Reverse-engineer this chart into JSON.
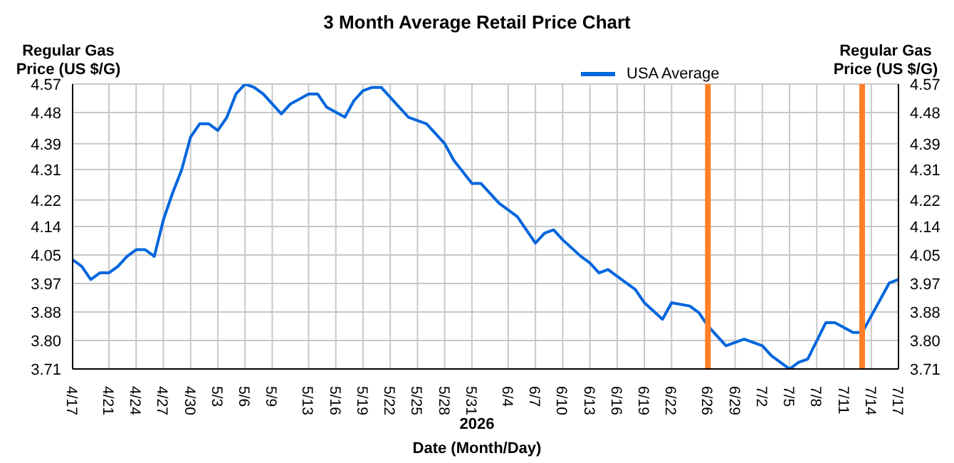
{
  "chart_data": {
    "type": "line",
    "title": "3 Month Average Retail Price Chart",
    "xlabel": "Date (Month/Day)",
    "subtitle": "2026",
    "ylabel": "Regular Gas Price (US $/G)",
    "y2label": "Regular Gas Price (US $/G)",
    "x": [
      "2026-04-17",
      "2026-04-18",
      "2026-04-19",
      "2026-04-20",
      "2026-04-21",
      "2026-04-22",
      "2026-04-23",
      "2026-04-24",
      "2026-04-25",
      "2026-04-26",
      "2026-04-27",
      "2026-04-28",
      "2026-04-29",
      "2026-04-30",
      "2026-05-01",
      "2026-05-02",
      "2026-05-03",
      "2026-05-04",
      "2026-05-05",
      "2026-05-06",
      "2026-05-07",
      "2026-05-08",
      "2026-05-10",
      "2026-05-11",
      "2026-05-13",
      "2026-05-14",
      "2026-05-15",
      "2026-05-17",
      "2026-05-18",
      "2026-05-19",
      "2026-05-20",
      "2026-05-21",
      "2026-05-23",
      "2026-05-24",
      "2026-05-26",
      "2026-05-28",
      "2026-05-29",
      "2026-05-31",
      "2026-06-01",
      "2026-06-03",
      "2026-06-05",
      "2026-06-07",
      "2026-06-08",
      "2026-06-09",
      "2026-06-10",
      "2026-06-12",
      "2026-06-13",
      "2026-06-14",
      "2026-06-15",
      "2026-06-16",
      "2026-06-18",
      "2026-06-19",
      "2026-06-21",
      "2026-06-22",
      "2026-06-24",
      "2026-06-25",
      "2026-06-26",
      "2026-06-28",
      "2026-06-30",
      "2026-07-02",
      "2026-07-03",
      "2026-07-05",
      "2026-07-06",
      "2026-07-07",
      "2026-07-09",
      "2026-07-10",
      "2026-07-12",
      "2026-07-13",
      "2026-07-16",
      "2026-07-17"
    ],
    "series": [
      {
        "name": "USA Average",
        "color": "#0066dd",
        "values": [
          4.04,
          4.02,
          3.98,
          4.0,
          4.0,
          4.02,
          4.05,
          4.07,
          4.07,
          4.05,
          4.16,
          4.24,
          4.31,
          4.41,
          4.45,
          4.45,
          4.43,
          4.47,
          4.54,
          4.57,
          4.56,
          4.54,
          4.48,
          4.51,
          4.54,
          4.54,
          4.5,
          4.47,
          4.52,
          4.55,
          4.56,
          4.56,
          4.5,
          4.47,
          4.45,
          4.39,
          4.34,
          4.27,
          4.27,
          4.21,
          4.17,
          4.09,
          4.12,
          4.13,
          4.1,
          4.05,
          4.03,
          4.0,
          4.01,
          3.99,
          3.95,
          3.91,
          3.86,
          3.91,
          3.9,
          3.88,
          3.84,
          3.78,
          3.8,
          3.78,
          3.75,
          3.71,
          3.73,
          3.74,
          3.85,
          3.85,
          3.82,
          3.82,
          3.97,
          3.98
        ]
      }
    ],
    "xlim": [
      "2026-04-17",
      "2026-07-17"
    ],
    "xticks": [
      {
        "value": "2026-04-17",
        "label": "4/17"
      },
      {
        "value": "2026-04-21",
        "label": "4/21"
      },
      {
        "value": "2026-04-24",
        "label": "4/24"
      },
      {
        "value": "2026-04-27",
        "label": "4/27"
      },
      {
        "value": "2026-04-30",
        "label": "4/30"
      },
      {
        "value": "2026-05-03",
        "label": "5/3"
      },
      {
        "value": "2026-05-06",
        "label": "5/6"
      },
      {
        "value": "2026-05-09",
        "label": "5/9"
      },
      {
        "value": "2026-05-13",
        "label": "5/13"
      },
      {
        "value": "2026-05-16",
        "label": "5/16"
      },
      {
        "value": "2026-05-19",
        "label": "5/19"
      },
      {
        "value": "2026-05-22",
        "label": "5/22"
      },
      {
        "value": "2026-05-25",
        "label": "5/25"
      },
      {
        "value": "2026-05-28",
        "label": "5/28"
      },
      {
        "value": "2026-05-31",
        "label": "5/31"
      },
      {
        "value": "2026-06-04",
        "label": "6/4"
      },
      {
        "value": "2026-06-07",
        "label": "6/7"
      },
      {
        "value": "2026-06-10",
        "label": "6/10"
      },
      {
        "value": "2026-06-13",
        "label": "6/13"
      },
      {
        "value": "2026-06-16",
        "label": "6/16"
      },
      {
        "value": "2026-06-19",
        "label": "6/19"
      },
      {
        "value": "2026-06-22",
        "label": "6/22"
      },
      {
        "value": "2026-06-26",
        "label": "6/26"
      },
      {
        "value": "2026-06-29",
        "label": "6/29"
      },
      {
        "value": "2026-07-02",
        "label": "7/2"
      },
      {
        "value": "2026-07-05",
        "label": "7/5"
      },
      {
        "value": "2026-07-08",
        "label": "7/8"
      },
      {
        "value": "2026-07-11",
        "label": "7/11"
      },
      {
        "value": "2026-07-14",
        "label": "7/14"
      },
      {
        "value": "2026-07-17",
        "label": "7/17"
      }
    ],
    "ylim": [
      3.71,
      4.57
    ],
    "yticks": [
      3.71,
      {
        "value": 3.796,
        "label": "3.80"
      },
      {
        "value": 3.882,
        "label": "3.88"
      },
      {
        "value": 3.968,
        "label": "3.97"
      },
      {
        "value": 4.054,
        "label": "4.05"
      },
      4.14,
      4.22,
      {
        "value": 4.312,
        "label": "4.31"
      },
      4.39,
      {
        "value": 4.484,
        "label": "4.48"
      },
      4.57
    ],
    "y2lim": [
      3.71,
      4.57
    ],
    "y2ticks": [
      3.71,
      {
        "value": 3.796,
        "label": "3.80"
      },
      {
        "value": 3.882,
        "label": "3.88"
      },
      {
        "value": 3.968,
        "label": "3.97"
      },
      {
        "value": 4.054,
        "label": "4.05"
      },
      4.14,
      4.22,
      {
        "value": 4.312,
        "label": "4.31"
      },
      4.39,
      {
        "value": 4.484,
        "label": "4.48"
      },
      4.57
    ],
    "ref_lines": [
      {
        "axis": "x",
        "value": "2026-06-26",
        "color": "#ff7f27"
      },
      {
        "axis": "x",
        "value": "2026-07-13",
        "color": "#ff7f27"
      }
    ],
    "grid": true,
    "legend": "top",
    "marker": "none",
    "line_style": "solid"
  }
}
